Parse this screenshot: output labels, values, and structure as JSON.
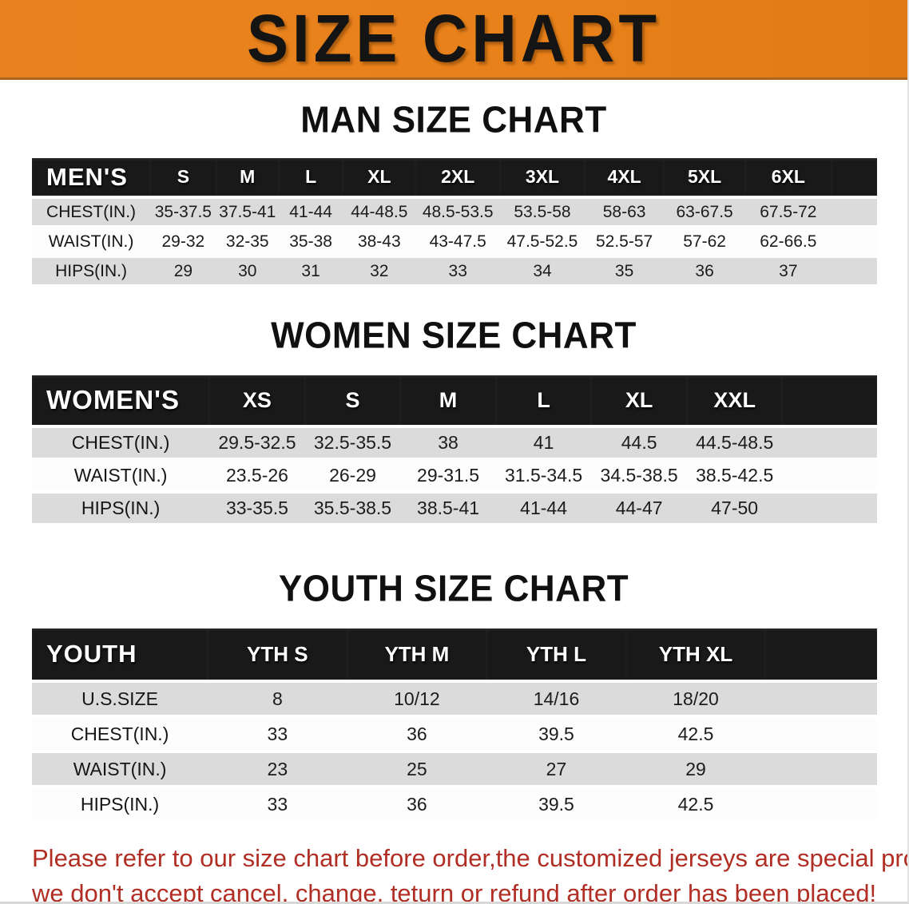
{
  "banner": {
    "title": "SIZE CHART"
  },
  "sections": [
    {
      "heading": "MAN SIZE CHART",
      "table": {
        "header_label": "MEN'S",
        "columns": [
          "S",
          "M",
          "L",
          "XL",
          "2XL",
          "3XL",
          "4XL",
          "5XL",
          "6XL"
        ],
        "rows": [
          {
            "label": "CHEST(IN.)",
            "values": [
              "35-37.5",
              "37.5-41",
              "41-44",
              "44-48.5",
              "48.5-53.5",
              "53.5-58",
              "58-63",
              "63-67.5",
              "67.5-72"
            ]
          },
          {
            "label": "WAIST(IN.)",
            "values": [
              "29-32",
              "32-35",
              "35-38",
              "38-43",
              "43-47.5",
              "47.5-52.5",
              "52.5-57",
              "57-62",
              "62-66.5"
            ]
          },
          {
            "label": "HIPS(IN.)",
            "values": [
              "29",
              "30",
              "31",
              "32",
              "33",
              "34",
              "35",
              "36",
              "37"
            ]
          }
        ]
      }
    },
    {
      "heading": "WOMEN SIZE CHART",
      "table": {
        "header_label": "WOMEN'S",
        "columns": [
          "XS",
          "S",
          "M",
          "L",
          "XL",
          "XXL"
        ],
        "rows": [
          {
            "label": "CHEST(IN.)",
            "values": [
              "29.5-32.5",
              "32.5-35.5",
              "38",
              "41",
              "44.5",
              "44.5-48.5"
            ]
          },
          {
            "label": "WAIST(IN.)",
            "values": [
              "23.5-26",
              "26-29",
              "29-31.5",
              "31.5-34.5",
              "34.5-38.5",
              "38.5-42.5"
            ]
          },
          {
            "label": "HIPS(IN.)",
            "values": [
              "33-35.5",
              "35.5-38.5",
              "38.5-41",
              "41-44",
              "44-47",
              "47-50"
            ]
          }
        ]
      }
    },
    {
      "heading": "YOUTH SIZE CHART",
      "table": {
        "header_label": "YOUTH",
        "columns": [
          "YTH S",
          "YTH M",
          "YTH L",
          "YTH XL"
        ],
        "rows": [
          {
            "label": "U.S.SIZE",
            "values": [
              "8",
              "10/12",
              "14/16",
              "18/20"
            ]
          },
          {
            "label": "CHEST(IN.)",
            "values": [
              "33",
              "36",
              "39.5",
              "42.5"
            ]
          },
          {
            "label": "WAIST(IN.)",
            "values": [
              "23",
              "25",
              "27",
              "29"
            ]
          },
          {
            "label": "HIPS(IN.)",
            "values": [
              "33",
              "36",
              "39.5",
              "42.5"
            ]
          }
        ]
      }
    }
  ],
  "disclaimer": {
    "line1": "Please refer to our size chart before order,the customized jerseys are special products,",
    "line2": "we don't accept cancel, change, teturn or refund after order has been placed!"
  },
  "colors": {
    "banner_orange": "#E8811A",
    "header_bar_black": "#191919",
    "row_gray": "#DBDBDB",
    "disclaimer_red": "#B02E24"
  }
}
